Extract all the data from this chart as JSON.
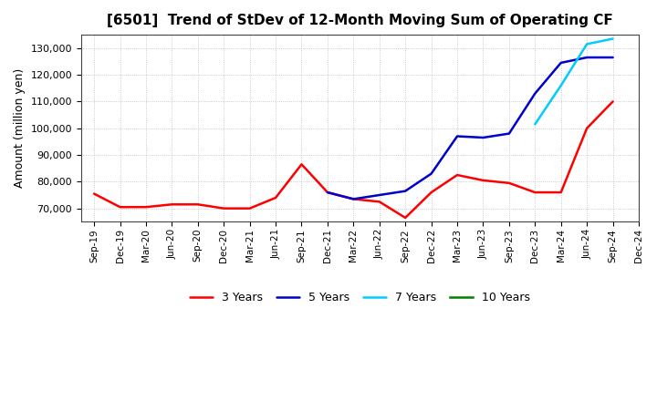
{
  "title": "[6501]  Trend of StDev of 12-Month Moving Sum of Operating CF",
  "ylabel": "Amount (million yen)",
  "background_color": "#ffffff",
  "grid_color": "#aaaaaa",
  "ylim": [
    65000,
    135000
  ],
  "yticks": [
    70000,
    80000,
    90000,
    100000,
    110000,
    120000,
    130000
  ],
  "x_labels": [
    "Sep-19",
    "Dec-19",
    "Mar-20",
    "Jun-20",
    "Sep-20",
    "Dec-20",
    "Mar-21",
    "Jun-21",
    "Sep-21",
    "Dec-21",
    "Mar-22",
    "Jun-22",
    "Sep-22",
    "Dec-22",
    "Mar-23",
    "Jun-23",
    "Sep-23",
    "Dec-23",
    "Mar-24",
    "Jun-24",
    "Sep-24",
    "Dec-24"
  ],
  "series": {
    "3 Years": {
      "color": "#ff0000",
      "linewidth": 1.8,
      "data_x": [
        0,
        1,
        2,
        3,
        4,
        5,
        6,
        7,
        8,
        9,
        10,
        11,
        12,
        13,
        14,
        15,
        16,
        17,
        18,
        19,
        20
      ],
      "data_y": [
        75500,
        70500,
        70500,
        71500,
        71500,
        70000,
        70000,
        74000,
        86500,
        76000,
        73500,
        72500,
        66500,
        76000,
        82500,
        80500,
        79500,
        76000,
        76000,
        100000,
        110000
      ]
    },
    "5 Years": {
      "color": "#0000cc",
      "linewidth": 1.8,
      "data_x": [
        9,
        10,
        11,
        12,
        13,
        14,
        15,
        16,
        17,
        18,
        19,
        20
      ],
      "data_y": [
        76000,
        73500,
        75000,
        76500,
        83000,
        97000,
        96500,
        98000,
        113000,
        124500,
        126500,
        126500
      ]
    },
    "7 Years": {
      "color": "#00ccff",
      "linewidth": 1.8,
      "data_x": [
        17,
        18,
        19,
        20
      ],
      "data_y": [
        101500,
        116000,
        131500,
        133500
      ]
    },
    "10 Years": {
      "color": "#008000",
      "linewidth": 1.8,
      "data_x": [],
      "data_y": []
    }
  },
  "legend_order": [
    "3 Years",
    "5 Years",
    "7 Years",
    "10 Years"
  ]
}
